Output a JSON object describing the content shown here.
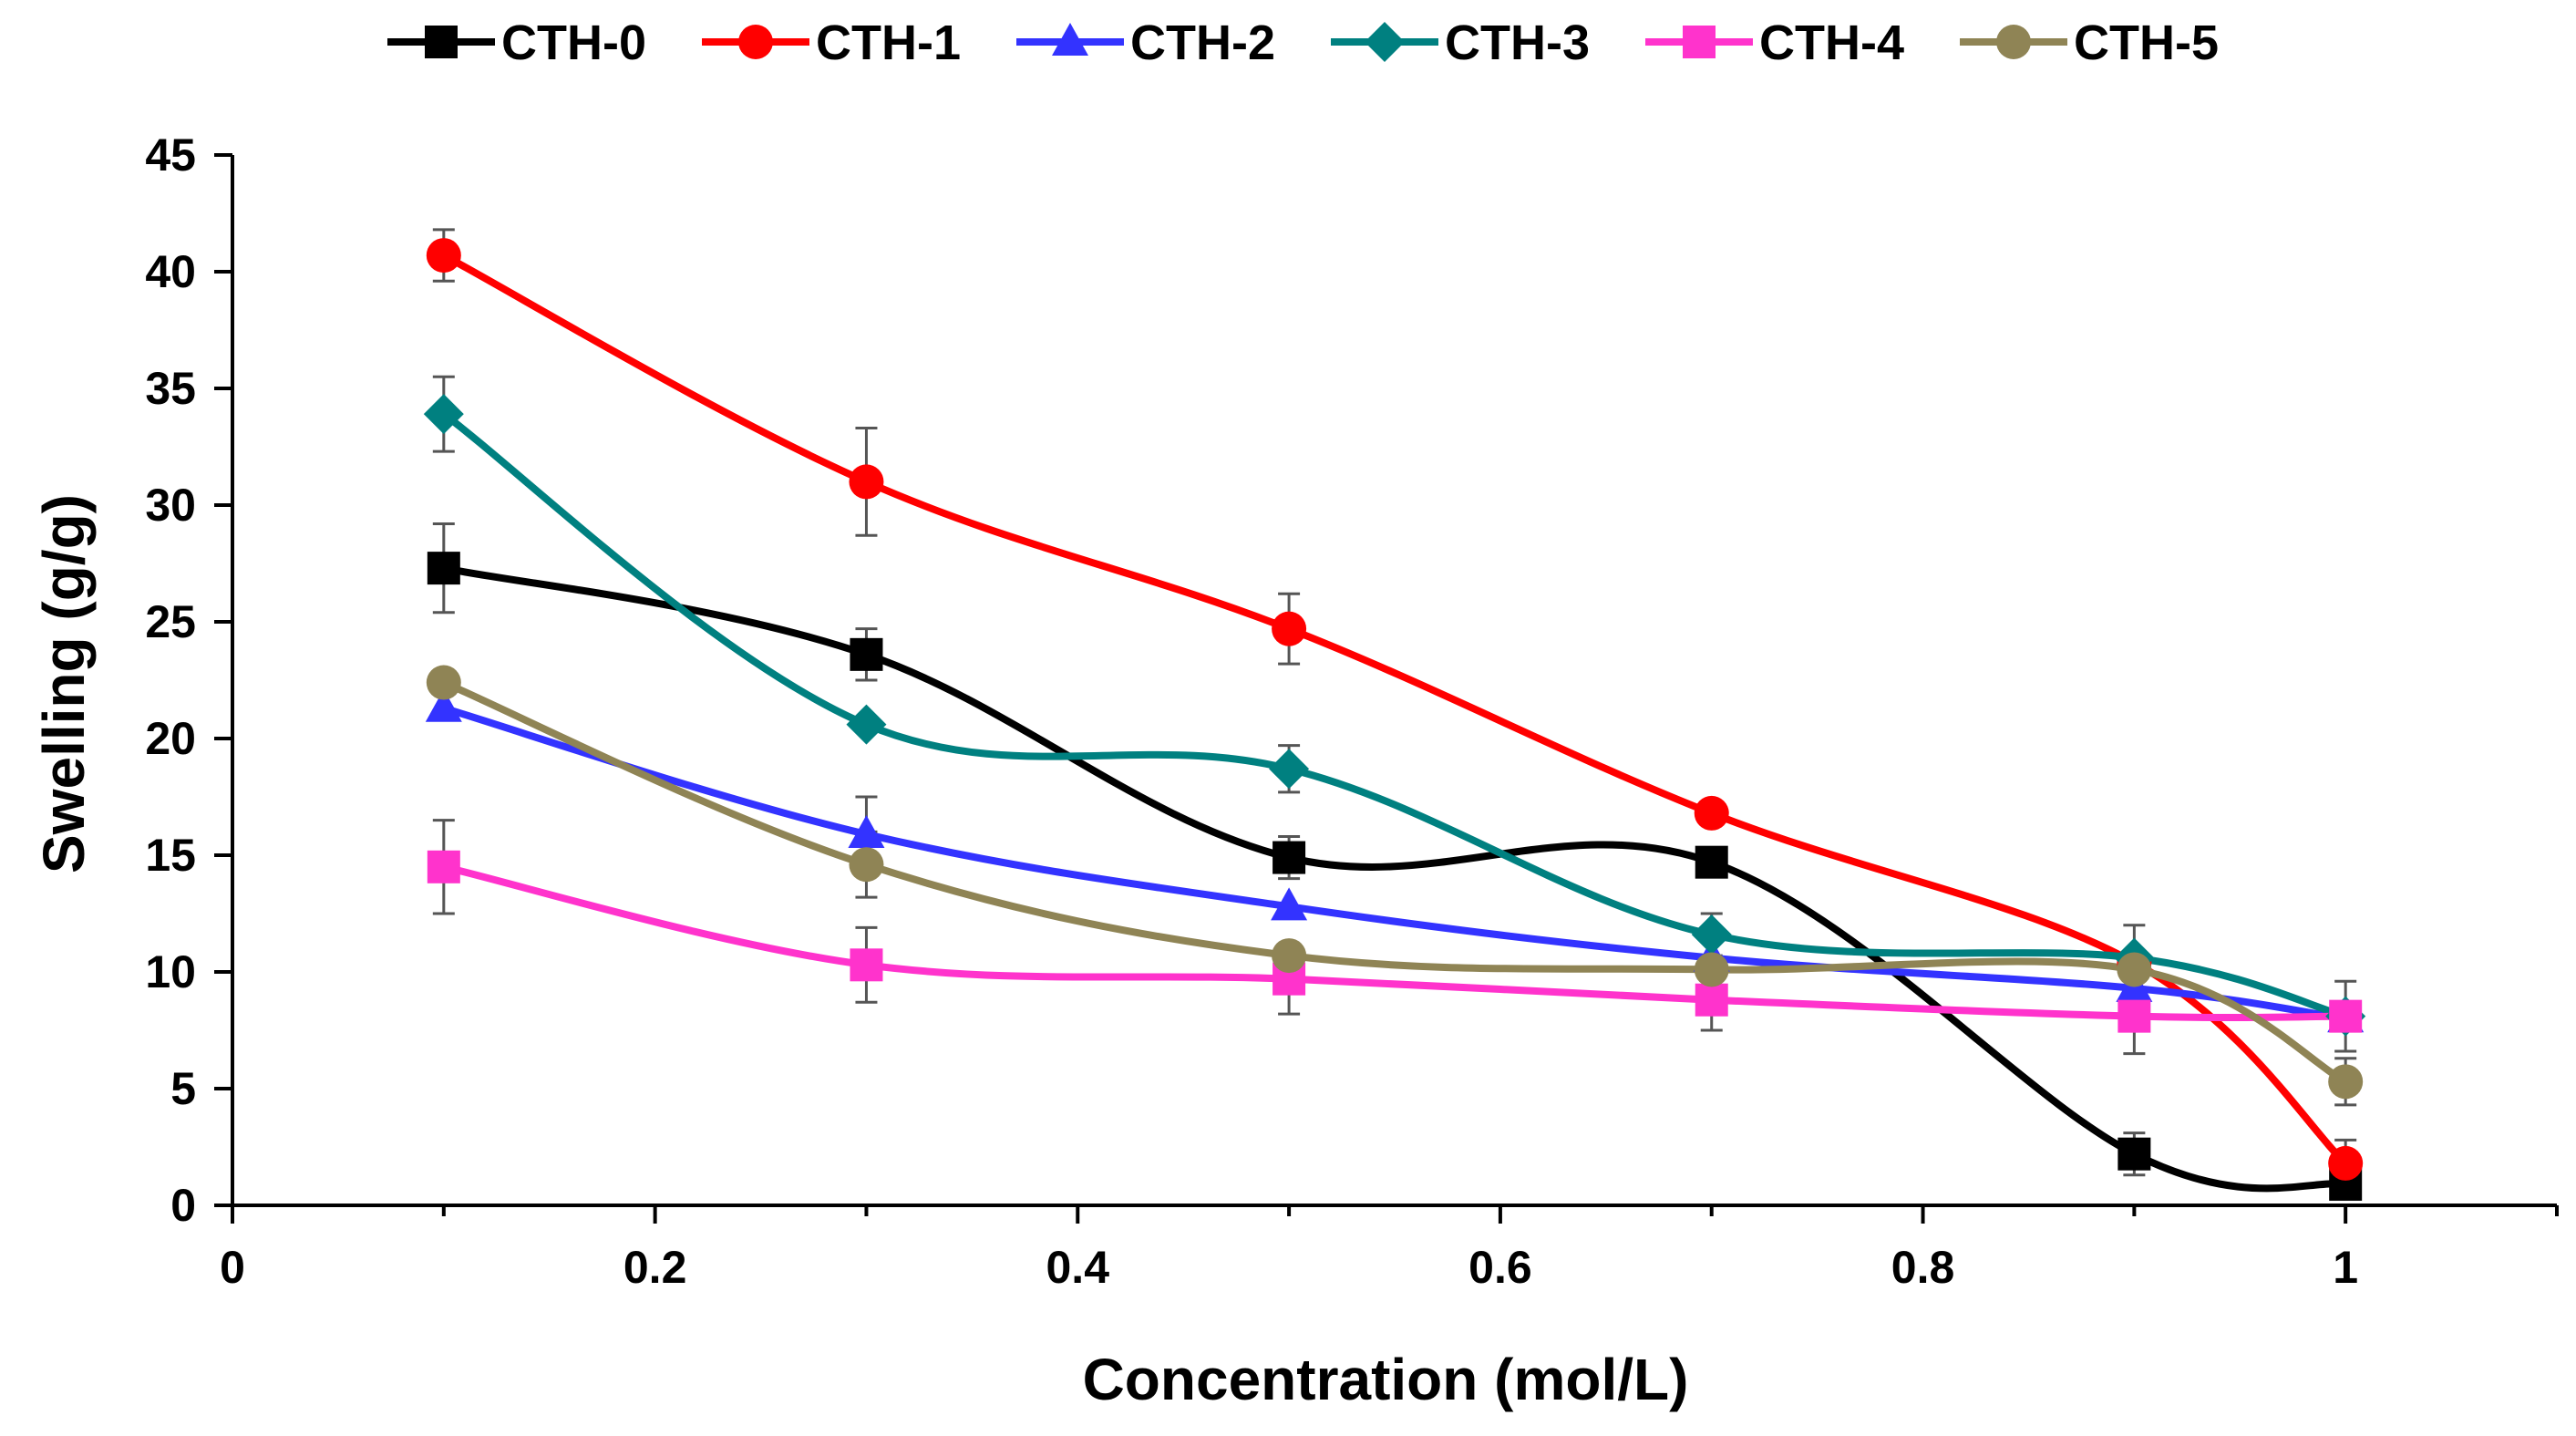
{
  "chart_data": {
    "type": "line",
    "title": "",
    "xlabel": "Concentration (mol/L)",
    "ylabel": "Swelling (g/g)",
    "xlim": [
      0,
      1.1
    ],
    "ylim": [
      0,
      45
    ],
    "x_ticks": [
      0,
      0.2,
      0.4,
      0.6,
      0.8,
      1
    ],
    "x_tick_labels": [
      "0",
      "0.2",
      "0.4",
      "0.6",
      "0.8",
      "1"
    ],
    "y_ticks": [
      0,
      5,
      10,
      15,
      20,
      25,
      30,
      35,
      40,
      45
    ],
    "y_tick_labels": [
      "0",
      "5",
      "10",
      "15",
      "20",
      "25",
      "30",
      "35",
      "40",
      "45"
    ],
    "grid": false,
    "legend_position": "top",
    "x": [
      0.1,
      0.3,
      0.5,
      0.7,
      0.9,
      1.0
    ],
    "series": [
      {
        "name": "CTH-0",
        "color": "#000000",
        "marker": "square",
        "values": [
          27.3,
          23.6,
          14.9,
          14.7,
          2.2,
          0.9
        ],
        "errors": [
          1.9,
          1.1,
          0.9,
          0.6,
          0.9,
          0.6
        ]
      },
      {
        "name": "CTH-1",
        "color": "#ff0000",
        "marker": "circle",
        "values": [
          40.7,
          31.0,
          24.7,
          16.8,
          10.4,
          1.8
        ],
        "errors": [
          1.1,
          2.3,
          1.5,
          0.0,
          0.0,
          1.0
        ]
      },
      {
        "name": "CTH-2",
        "color": "#3333ff",
        "marker": "triangle",
        "values": [
          21.3,
          15.9,
          12.8,
          10.6,
          9.3,
          8.0
        ],
        "errors": [
          0.0,
          1.6,
          0.0,
          0.0,
          0.0,
          0.0
        ]
      },
      {
        "name": "CTH-3",
        "color": "#008080",
        "marker": "diamond",
        "values": [
          33.9,
          20.6,
          18.7,
          11.6,
          10.6,
          8.1
        ],
        "errors": [
          1.6,
          0.0,
          1.0,
          0.9,
          1.4,
          0.0
        ]
      },
      {
        "name": "CTH-4",
        "color": "#ff33cc",
        "marker": "square",
        "values": [
          14.5,
          10.3,
          9.7,
          8.8,
          8.1,
          8.1
        ],
        "errors": [
          2.0,
          1.6,
          1.5,
          1.3,
          1.6,
          1.5
        ]
      },
      {
        "name": "CTH-5",
        "color": "#8f8455",
        "marker": "circle",
        "values": [
          22.4,
          14.6,
          10.7,
          10.1,
          10.1,
          5.3
        ],
        "errors": [
          0.0,
          1.4,
          0.0,
          0.0,
          0.0,
          1.0
        ]
      }
    ]
  }
}
